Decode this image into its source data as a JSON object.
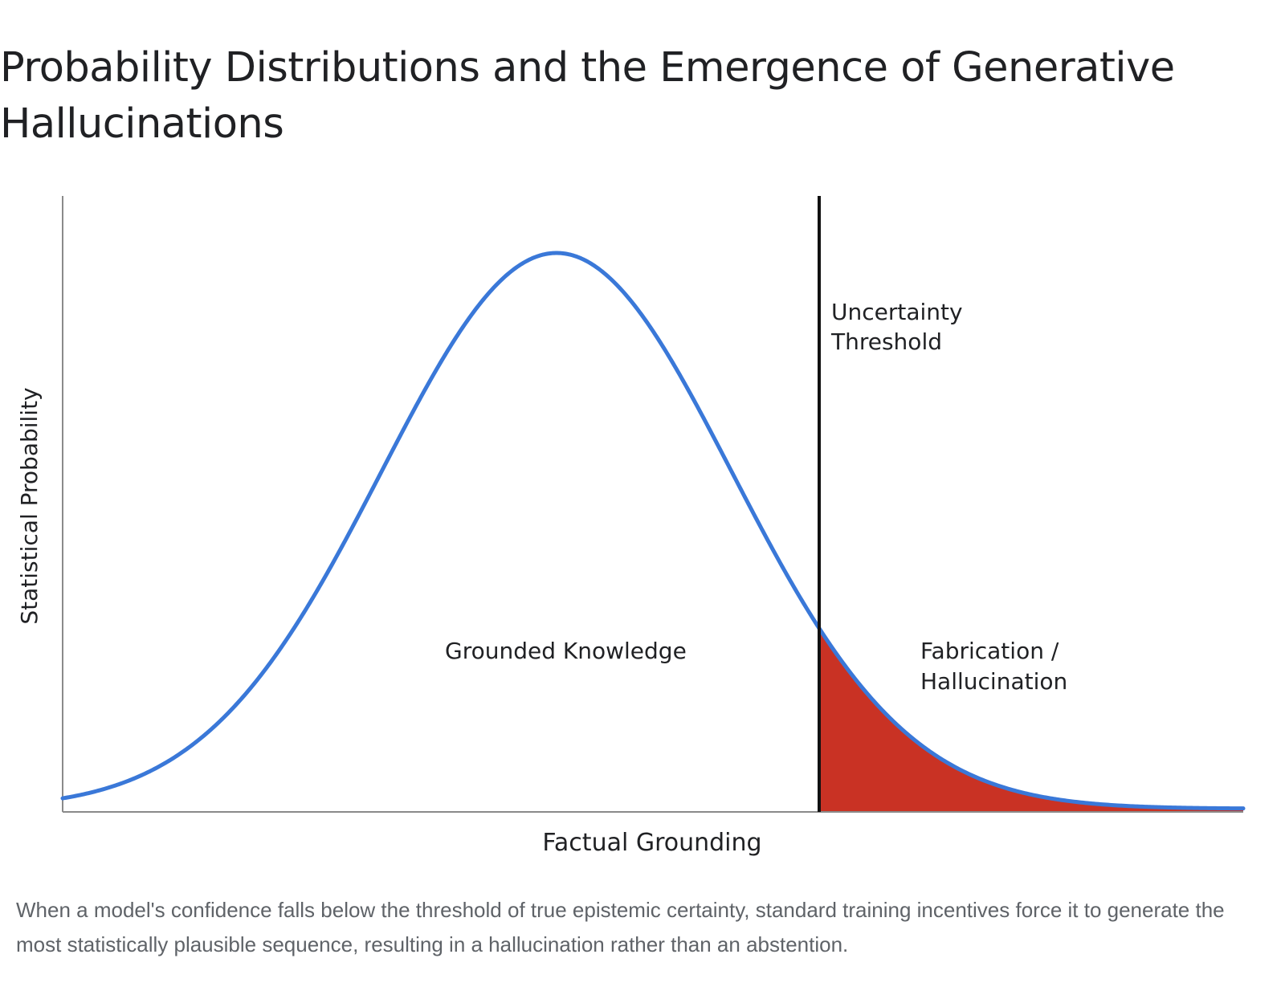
{
  "page": {
    "title": "Probability Distributions and the Emergence of Generative Hallucinations",
    "caption": "When a model's confidence falls below the threshold of true epistemic certainty, standard training incentives force it to generate the most statistically plausible sequence, resulting in a hallucination rather than an abstention."
  },
  "chart_data": {
    "type": "area",
    "title": "Probability Distributions and the Emergence of Generative Hallucinations",
    "xlabel": "Factual Grounding",
    "ylabel": "Statistical Probability",
    "x_ticks": "none",
    "y_ticks": "none",
    "grid": false,
    "distribution": "normal",
    "series": [
      {
        "name": "",
        "color": "#3a78d8",
        "region_labels": [
          "Grounded Knowledge",
          "Fabrication / Hallucination"
        ]
      }
    ],
    "threshold": {
      "label_lines": [
        "Uncertainty",
        "Threshold"
      ],
      "position_sd_from_mean": 1.5,
      "color": "#111111"
    },
    "shaded_region": {
      "side": "right-of-threshold",
      "color": "#c93224"
    },
    "annotations": [
      {
        "lines": [
          "Grounded Knowledge"
        ]
      },
      {
        "lines": [
          "Fabrication /",
          "Hallucination"
        ]
      }
    ]
  }
}
